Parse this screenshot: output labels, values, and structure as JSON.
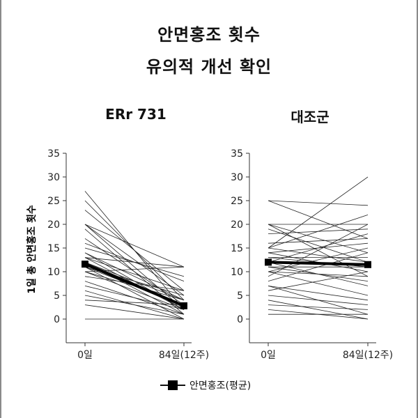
{
  "title_line1": "안면홍조 횟수",
  "title_line2": "유의적 개선 확인",
  "ylabel": "1일 총 안면홍조 횟수",
  "legend_label": "안면홍조(평균)",
  "colors": {
    "line": "#222222",
    "mean": "#000000",
    "axis": "#333333"
  },
  "chart_data": [
    {
      "type": "line",
      "title": "ERr 731",
      "categories": [
        "0일",
        "84일(12주)"
      ],
      "ylim": [
        -5,
        35
      ],
      "yticks": [
        0,
        5,
        10,
        15,
        20,
        25,
        30,
        35
      ],
      "mean": {
        "name": "안면홍조(평균)",
        "values": [
          11.6,
          2.8
        ]
      },
      "subjects": [
        [
          27,
          2
        ],
        [
          25,
          4
        ],
        [
          23,
          6
        ],
        [
          20,
          11
        ],
        [
          20,
          5
        ],
        [
          19,
          1
        ],
        [
          17,
          3
        ],
        [
          16,
          8
        ],
        [
          15,
          9
        ],
        [
          14,
          4
        ],
        [
          14,
          2
        ],
        [
          13,
          11
        ],
        [
          13,
          6
        ],
        [
          12,
          3
        ],
        [
          12,
          1
        ],
        [
          11,
          5
        ],
        [
          11,
          0
        ],
        [
          10,
          4
        ],
        [
          10,
          2
        ],
        [
          10,
          11
        ],
        [
          9,
          6
        ],
        [
          8,
          1
        ],
        [
          7,
          2
        ],
        [
          6,
          0
        ],
        [
          5,
          1
        ],
        [
          4,
          3
        ],
        [
          3,
          0
        ],
        [
          13,
          2
        ],
        [
          11,
          3
        ],
        [
          12,
          4
        ],
        [
          0,
          0
        ],
        [
          20,
          2
        ]
      ]
    },
    {
      "type": "line",
      "title": "대조군",
      "categories": [
        "0일",
        "84일(12주)"
      ],
      "ylim": [
        -5,
        35
      ],
      "yticks": [
        0,
        5,
        10,
        15,
        20,
        25,
        30,
        35
      ],
      "mean": {
        "name": "안면홍조(평균)",
        "values": [
          12,
          11.5
        ]
      },
      "subjects": [
        [
          25,
          24
        ],
        [
          25,
          17
        ],
        [
          20,
          20
        ],
        [
          20,
          14
        ],
        [
          20,
          9
        ],
        [
          18,
          19
        ],
        [
          15,
          30
        ],
        [
          15,
          22
        ],
        [
          15,
          12
        ],
        [
          14,
          16
        ],
        [
          13,
          13
        ],
        [
          12,
          18
        ],
        [
          12,
          7
        ],
        [
          11,
          11
        ],
        [
          10,
          15
        ],
        [
          10,
          9
        ],
        [
          10,
          5
        ],
        [
          8,
          14
        ],
        [
          7,
          4
        ],
        [
          7,
          1
        ],
        [
          6,
          10
        ],
        [
          5,
          3
        ],
        [
          4,
          0
        ],
        [
          3,
          2
        ],
        [
          2,
          0
        ],
        [
          1,
          1
        ],
        [
          13,
          11
        ],
        [
          16,
          17
        ],
        [
          19,
          12
        ],
        [
          14,
          10
        ],
        [
          11,
          8
        ],
        [
          9,
          20
        ]
      ]
    }
  ]
}
